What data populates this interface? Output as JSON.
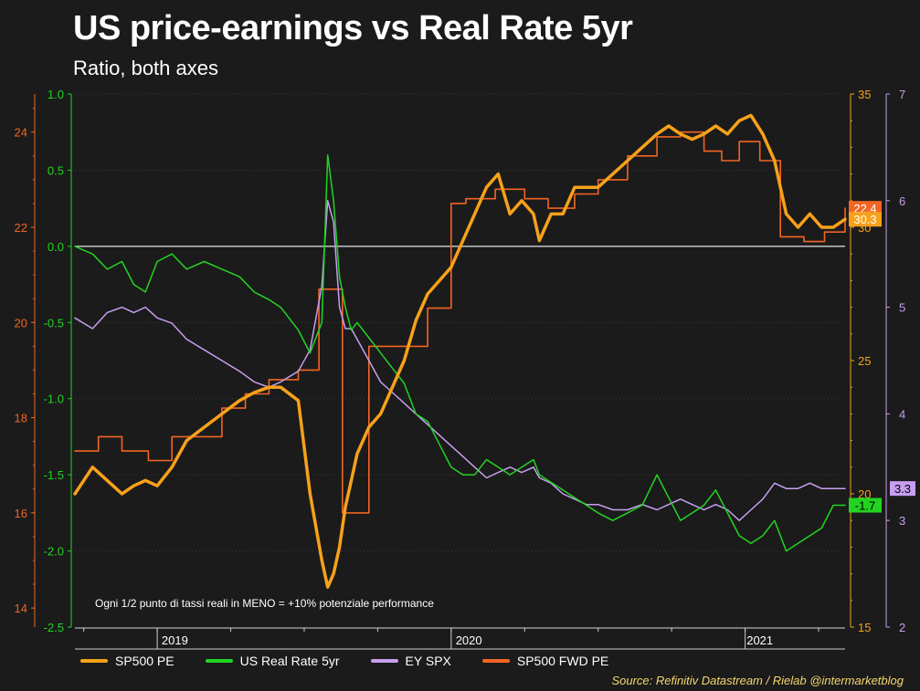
{
  "title": "US price-earnings vs Real Rate 5yr",
  "subtitle": "Ratio, both axes",
  "annotation": "Ogni 1/2 punto di tassi reali in MENO = +10% potenziale performance",
  "source": "Source: Refinitiv Datastream / Rielab @intermarketblog",
  "colors": {
    "sp500_pe": "#f7a11a",
    "real_rate": "#22d422",
    "ey_spx": "#c79ef0",
    "fwd_pe": "#f26522"
  },
  "chart_data": {
    "type": "line",
    "x_ticks": [
      "2019",
      "2020",
      "2021"
    ],
    "axes": {
      "left_outer": {
        "series": "SP500 FWD PE",
        "ylim": [
          13.6,
          24.8
        ],
        "ticks": [
          14,
          16,
          18,
          20,
          22,
          24
        ],
        "color": "#f26522"
      },
      "left_inner": {
        "series": "US Real Rate 5yr",
        "ylim": [
          -2.5,
          1.0
        ],
        "ticks": [
          "1.0",
          "0.5",
          "0.0",
          "-0.5",
          "-1.0",
          "-1.5",
          "-2.0",
          "-2.5"
        ],
        "color": "#22d422"
      },
      "right_inner": {
        "series": "SP500 PE",
        "ylim": [
          15,
          35
        ],
        "ticks": [
          15,
          20,
          25,
          30,
          35
        ],
        "color": "#f7a11a"
      },
      "right_outer": {
        "series": "EY SPX",
        "ylim": [
          2,
          7
        ],
        "ticks": [
          2,
          3,
          4,
          5,
          6,
          7
        ],
        "color": "#c79ef0"
      }
    },
    "zero_line": 0.0,
    "end_labels": [
      {
        "series": "SP500 FWD PE",
        "text": "22.4"
      },
      {
        "series": "SP500 PE",
        "text": "30.3"
      },
      {
        "series": "US Real Rate 5yr",
        "text": "-1.7"
      },
      {
        "series": "EY SPX",
        "text": "3.3"
      }
    ],
    "series": [
      {
        "name": "SP500 PE",
        "axis": "right_inner",
        "x": [
          2018.72,
          2018.78,
          2018.83,
          2018.88,
          2018.92,
          2018.96,
          2019.0,
          2019.05,
          2019.1,
          2019.16,
          2019.22,
          2019.28,
          2019.33,
          2019.38,
          2019.42,
          2019.48,
          2019.52,
          2019.56,
          2019.58,
          2019.6,
          2019.62,
          2019.64,
          2019.66,
          2019.68,
          2019.72,
          2019.76,
          2019.8,
          2019.84,
          2019.88,
          2019.92,
          2019.96,
          2020.0,
          2020.04,
          2020.08,
          2020.12,
          2020.16,
          2020.2,
          2020.24,
          2020.28,
          2020.3,
          2020.34,
          2020.38,
          2020.42,
          2020.46,
          2020.5,
          2020.55,
          2020.6,
          2020.65,
          2020.7,
          2020.74,
          2020.78,
          2020.82,
          2020.86,
          2020.9,
          2020.94,
          2020.98,
          2021.02,
          2021.06,
          2021.1,
          2021.14,
          2021.18,
          2021.22,
          2021.26,
          2021.3,
          2021.34
        ],
        "values": [
          20.0,
          21.0,
          20.5,
          20.0,
          20.3,
          20.5,
          20.3,
          21.0,
          22.0,
          22.5,
          23.0,
          23.5,
          23.8,
          24.0,
          24.0,
          23.5,
          20.0,
          17.5,
          16.5,
          17.0,
          18.0,
          19.5,
          20.5,
          21.5,
          22.5,
          23.0,
          24.0,
          25.0,
          26.5,
          27.5,
          28.0,
          28.5,
          29.5,
          30.5,
          31.5,
          32.0,
          30.5,
          31.0,
          30.5,
          29.5,
          30.5,
          30.5,
          31.5,
          31.5,
          31.5,
          32.0,
          32.5,
          33.0,
          33.5,
          33.8,
          33.5,
          33.3,
          33.5,
          33.8,
          33.5,
          34.0,
          34.2,
          33.5,
          32.5,
          30.5,
          30.0,
          30.5,
          30.0,
          30.0,
          30.3
        ]
      },
      {
        "name": "US Real Rate 5yr",
        "axis": "left_inner",
        "x": [
          2018.72,
          2018.78,
          2018.83,
          2018.88,
          2018.92,
          2018.96,
          2019.0,
          2019.05,
          2019.1,
          2019.16,
          2019.22,
          2019.28,
          2019.33,
          2019.38,
          2019.42,
          2019.48,
          2019.52,
          2019.56,
          2019.58,
          2019.6,
          2019.62,
          2019.64,
          2019.66,
          2019.68,
          2019.72,
          2019.76,
          2019.8,
          2019.84,
          2019.88,
          2019.92,
          2019.96,
          2020.0,
          2020.04,
          2020.08,
          2020.12,
          2020.16,
          2020.2,
          2020.24,
          2020.28,
          2020.3,
          2020.34,
          2020.38,
          2020.42,
          2020.46,
          2020.5,
          2020.55,
          2020.6,
          2020.65,
          2020.7,
          2020.74,
          2020.78,
          2020.82,
          2020.86,
          2020.9,
          2020.94,
          2020.98,
          2021.02,
          2021.06,
          2021.1,
          2021.14,
          2021.18,
          2021.22,
          2021.26,
          2021.3,
          2021.34
        ],
        "values": [
          0.0,
          -0.05,
          -0.15,
          -0.1,
          -0.25,
          -0.3,
          -0.1,
          -0.05,
          -0.15,
          -0.1,
          -0.15,
          -0.2,
          -0.3,
          -0.35,
          -0.4,
          -0.55,
          -0.7,
          -0.5,
          0.6,
          0.3,
          -0.2,
          -0.4,
          -0.55,
          -0.5,
          -0.6,
          -0.7,
          -0.8,
          -0.9,
          -1.1,
          -1.15,
          -1.3,
          -1.45,
          -1.5,
          -1.5,
          -1.4,
          -1.45,
          -1.5,
          -1.45,
          -1.4,
          -1.5,
          -1.55,
          -1.6,
          -1.65,
          -1.7,
          -1.75,
          -1.8,
          -1.75,
          -1.7,
          -1.5,
          -1.65,
          -1.8,
          -1.75,
          -1.7,
          -1.6,
          -1.75,
          -1.9,
          -1.95,
          -1.9,
          -1.8,
          -2.0,
          -1.95,
          -1.9,
          -1.85,
          -1.7,
          -1.7
        ]
      },
      {
        "name": "EY SPX",
        "axis": "right_outer",
        "x": [
          2018.72,
          2018.78,
          2018.83,
          2018.88,
          2018.92,
          2018.96,
          2019.0,
          2019.05,
          2019.1,
          2019.16,
          2019.22,
          2019.28,
          2019.33,
          2019.38,
          2019.42,
          2019.48,
          2019.52,
          2019.56,
          2019.58,
          2019.6,
          2019.62,
          2019.64,
          2019.66,
          2019.68,
          2019.72,
          2019.76,
          2019.8,
          2019.84,
          2019.88,
          2019.92,
          2019.96,
          2020.0,
          2020.04,
          2020.08,
          2020.12,
          2020.16,
          2020.2,
          2020.24,
          2020.28,
          2020.3,
          2020.34,
          2020.38,
          2020.42,
          2020.46,
          2020.5,
          2020.55,
          2020.6,
          2020.65,
          2020.7,
          2020.74,
          2020.78,
          2020.82,
          2020.86,
          2020.9,
          2020.94,
          2020.98,
          2021.02,
          2021.06,
          2021.1,
          2021.14,
          2021.18,
          2021.22,
          2021.26,
          2021.3,
          2021.34
        ],
        "values": [
          4.9,
          4.8,
          4.95,
          5.0,
          4.95,
          5.0,
          4.9,
          4.85,
          4.7,
          4.6,
          4.5,
          4.4,
          4.3,
          4.25,
          4.3,
          4.4,
          4.6,
          5.2,
          6.0,
          5.8,
          5.0,
          4.8,
          4.8,
          4.7,
          4.5,
          4.3,
          4.2,
          4.1,
          4.0,
          3.9,
          3.8,
          3.7,
          3.6,
          3.5,
          3.4,
          3.45,
          3.5,
          3.45,
          3.5,
          3.4,
          3.35,
          3.25,
          3.2,
          3.15,
          3.15,
          3.1,
          3.1,
          3.15,
          3.1,
          3.15,
          3.2,
          3.15,
          3.1,
          3.15,
          3.1,
          3.0,
          3.1,
          3.2,
          3.35,
          3.3,
          3.3,
          3.35,
          3.3,
          3.3,
          3.3
        ]
      },
      {
        "name": "SP500 FWD PE",
        "axis": "left_outer",
        "step": true,
        "x": [
          2018.72,
          2018.8,
          2018.88,
          2018.97,
          2019.05,
          2019.22,
          2019.3,
          2019.38,
          2019.48,
          2019.55,
          2019.63,
          2019.72,
          2019.92,
          2020.0,
          2020.05,
          2020.15,
          2020.25,
          2020.33,
          2020.42,
          2020.5,
          2020.6,
          2020.7,
          2020.78,
          2020.86,
          2020.92,
          2020.98,
          2021.05,
          2021.12,
          2021.2,
          2021.27,
          2021.34
        ],
        "values": [
          17.3,
          17.6,
          17.3,
          17.1,
          17.6,
          18.2,
          18.5,
          18.8,
          19.0,
          20.7,
          16.0,
          19.5,
          20.3,
          22.5,
          22.6,
          22.8,
          22.6,
          22.4,
          22.7,
          23.0,
          23.5,
          23.9,
          24.0,
          23.6,
          23.4,
          23.8,
          23.4,
          21.8,
          21.7,
          21.9,
          22.4
        ]
      }
    ]
  },
  "legend": [
    {
      "label": "SP500 PE",
      "color": "#f7a11a"
    },
    {
      "label": "US Real Rate 5yr",
      "color": "#22d422"
    },
    {
      "label": "EY SPX",
      "color": "#c79ef0"
    },
    {
      "label": "SP500 FWD PE",
      "color": "#f26522"
    }
  ]
}
